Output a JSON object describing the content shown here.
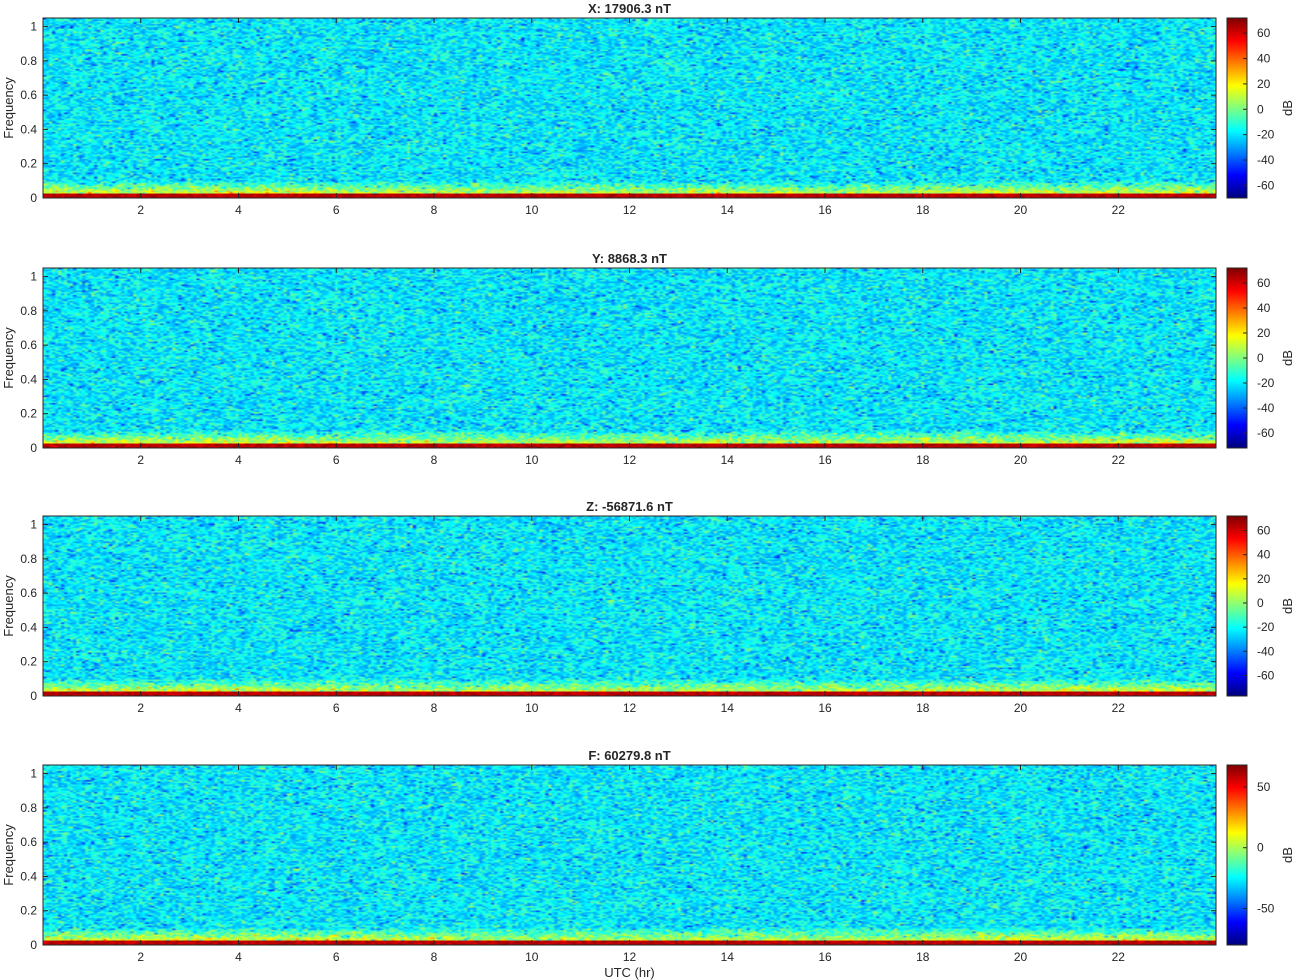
{
  "chart_data": [
    {
      "type": "heatmap",
      "title": "X: 17906.3 nT",
      "xlabel": "",
      "ylabel": "Frequency",
      "xlim": [
        0,
        24
      ],
      "ylim": [
        0,
        1.05
      ],
      "x_ticks": [
        "2",
        "4",
        "6",
        "8",
        "10",
        "12",
        "14",
        "16",
        "18",
        "20",
        "22"
      ],
      "y_ticks": [
        "0",
        "0.2",
        "0.4",
        "0.6",
        "0.8",
        "1"
      ],
      "colorbar": {
        "label": "dB",
        "range": [
          -70,
          72
        ],
        "ticks": [
          "60",
          "40",
          "20",
          "0",
          "-20",
          "-40",
          "-60"
        ],
        "tick_values": [
          60,
          40,
          20,
          0,
          -20,
          -40,
          -60
        ]
      },
      "colormap": "jet"
    },
    {
      "type": "heatmap",
      "title": "Y: 8868.3 nT",
      "xlabel": "",
      "ylabel": "Frequency",
      "xlim": [
        0,
        24
      ],
      "ylim": [
        0,
        1.05
      ],
      "x_ticks": [
        "2",
        "4",
        "6",
        "8",
        "10",
        "12",
        "14",
        "16",
        "18",
        "20",
        "22"
      ],
      "y_ticks": [
        "0",
        "0.2",
        "0.4",
        "0.6",
        "0.8",
        "1"
      ],
      "colorbar": {
        "label": "dB",
        "range": [
          -72,
          72
        ],
        "ticks": [
          "60",
          "40",
          "20",
          "0",
          "-20",
          "-40",
          "-60"
        ],
        "tick_values": [
          60,
          40,
          20,
          0,
          -20,
          -40,
          -60
        ]
      },
      "colormap": "jet"
    },
    {
      "type": "heatmap",
      "title": "Z: -56871.6 nT",
      "xlabel": "",
      "ylabel": "Frequency",
      "xlim": [
        0,
        24
      ],
      "ylim": [
        0,
        1.05
      ],
      "x_ticks": [
        "2",
        "4",
        "6",
        "8",
        "10",
        "12",
        "14",
        "16",
        "18",
        "20",
        "22"
      ],
      "y_ticks": [
        "0",
        "0.2",
        "0.4",
        "0.6",
        "0.8",
        "1"
      ],
      "colorbar": {
        "label": "dB",
        "range": [
          -77,
          72
        ],
        "ticks": [
          "60",
          "40",
          "20",
          "0",
          "-20",
          "-40",
          "-60"
        ],
        "tick_values": [
          60,
          40,
          20,
          0,
          -20,
          -40,
          -60
        ]
      },
      "colormap": "jet"
    },
    {
      "type": "heatmap",
      "title": "F: 60279.8 nT",
      "xlabel": "UTC (hr)",
      "ylabel": "Frequency",
      "xlim": [
        0,
        24
      ],
      "ylim": [
        0,
        1.05
      ],
      "x_ticks": [
        "2",
        "4",
        "6",
        "8",
        "10",
        "12",
        "14",
        "16",
        "18",
        "20",
        "22"
      ],
      "y_ticks": [
        "0",
        "0.2",
        "0.4",
        "0.6",
        "0.8",
        "1"
      ],
      "colorbar": {
        "label": "dB",
        "range": [
          -80,
          68
        ],
        "ticks": [
          "50",
          "0",
          "-50"
        ],
        "tick_values": [
          50,
          0,
          -50
        ]
      },
      "colormap": "jet"
    }
  ]
}
